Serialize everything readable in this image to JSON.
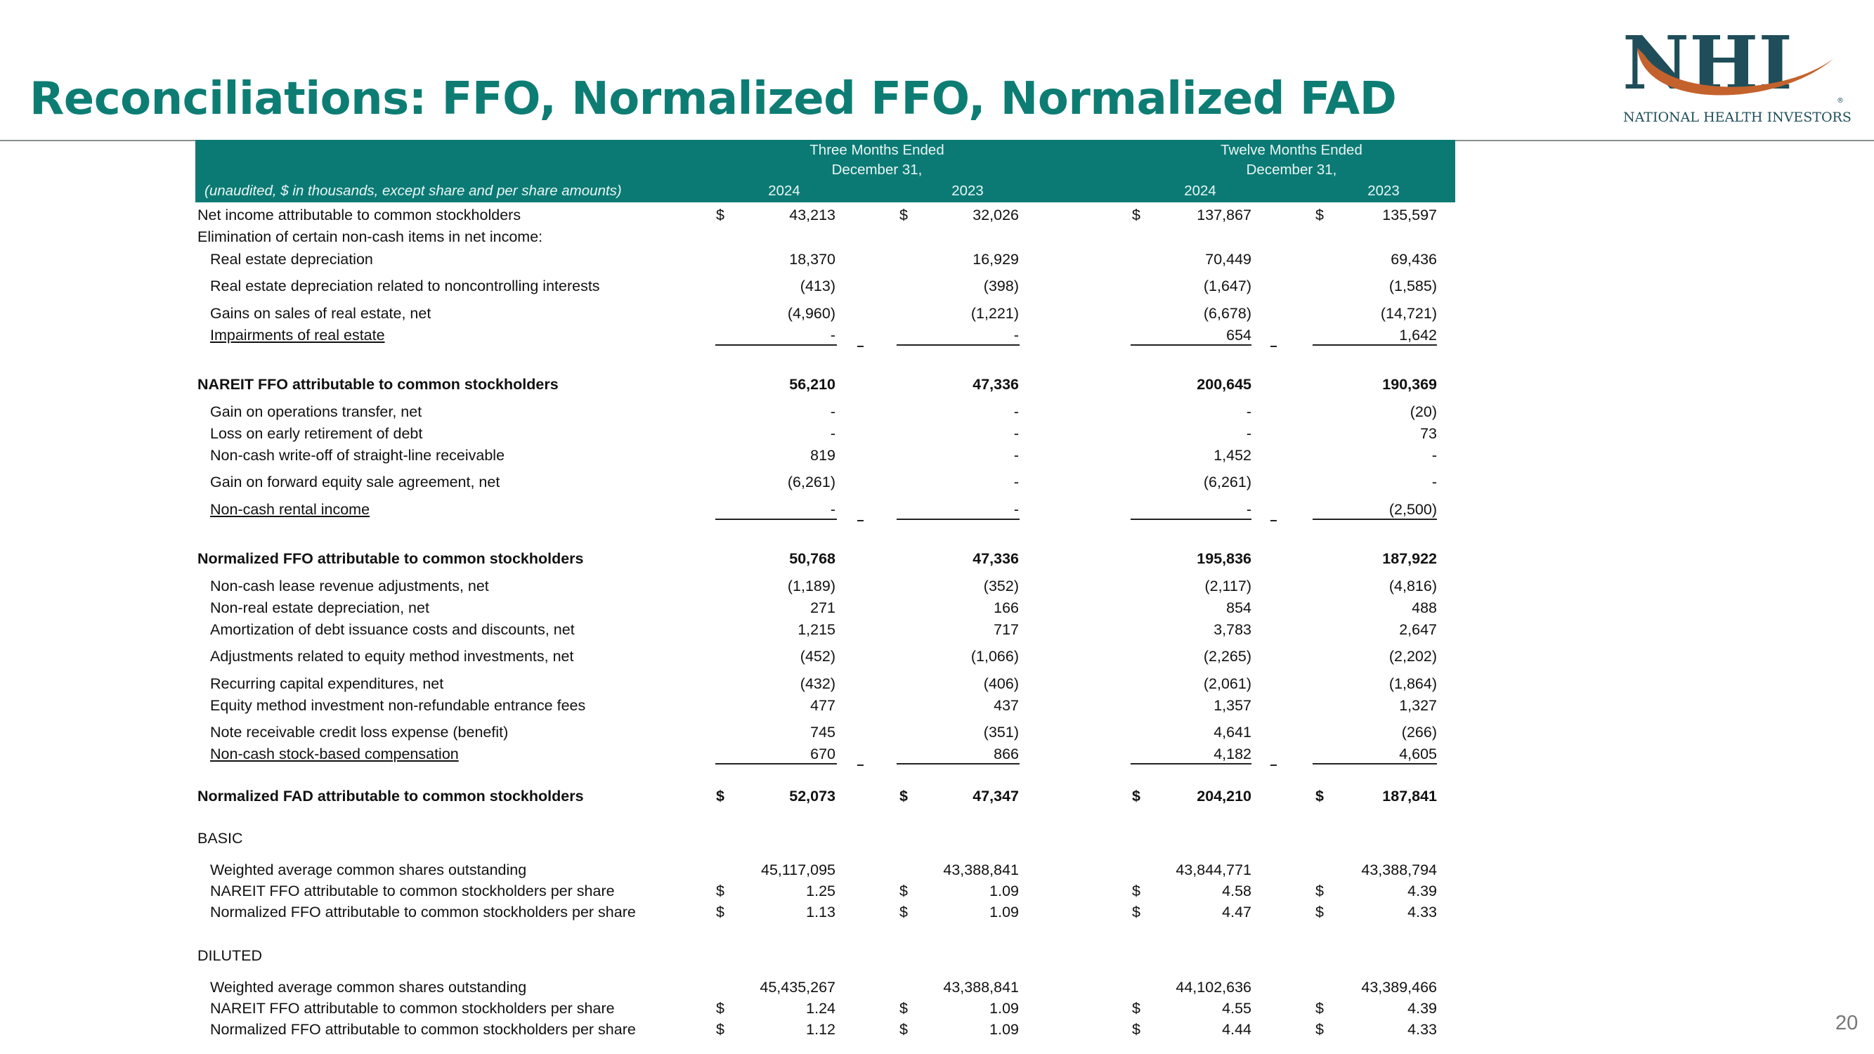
{
  "title": "Reconciliations:  FFO, Normalized FFO, Normalized FAD",
  "page_number": "20",
  "logo": {
    "name": "NHI",
    "subtitle": "NATIONAL HEALTH INVESTORS",
    "registered": "®"
  },
  "colors": {
    "teal": "#0d7d74",
    "band": "#0b7a74",
    "swoosh": "#c4622d"
  },
  "header": {
    "three_months": "Three Months Ended",
    "twelve_months": "Twelve Months Ended",
    "december": "December 31,",
    "unaudited": "(unaudited, $ in thousands, except share and per share amounts)",
    "years": [
      "2024",
      "2023",
      "2024",
      "2023"
    ]
  },
  "rows": [
    {
      "label": "Net income attributable to common stockholders",
      "indent": 0,
      "dollar": true,
      "values": [
        "43,213",
        "32,026",
        "137,867",
        "135,597"
      ]
    },
    {
      "label": "Elimination of certain non-cash items in net income:",
      "indent": 0,
      "values": [
        "",
        "",
        "",
        ""
      ]
    },
    {
      "label": "Real estate depreciation",
      "indent": 1,
      "values": [
        "18,370",
        "16,929",
        "70,449",
        "69,436"
      ]
    },
    {
      "label": "Real estate depreciation related to noncontrolling interests",
      "indent": 1,
      "values": [
        "(413)",
        "(398)",
        "(1,647)",
        "(1,585)"
      ]
    },
    {
      "label": "Gains on sales of real estate, net",
      "indent": 1,
      "values": [
        "(4,960)",
        "(1,221)",
        "(6,678)",
        "(14,721)"
      ]
    },
    {
      "label": "Impairments of real estate",
      "indent": 1,
      "underline": true,
      "values": [
        "-",
        "-",
        "654",
        "1,642"
      ]
    },
    {
      "label": "NAREIT FFO attributable to common stockholders",
      "indent": 0,
      "bold": true,
      "values": [
        "56,210",
        "47,336",
        "200,645",
        "190,369"
      ]
    },
    {
      "label": "Gain on operations transfer, net",
      "indent": 1,
      "values": [
        "-",
        "-",
        "-",
        "(20)"
      ]
    },
    {
      "label": "Loss on early retirement  of debt",
      "indent": 1,
      "values": [
        "-",
        "-",
        "-",
        "73"
      ]
    },
    {
      "label": "Non-cash write-off of straight-line receivable",
      "indent": 1,
      "values": [
        "819",
        "-",
        "1,452",
        "-"
      ]
    },
    {
      "label": "Gain on forward equity sale agreement, net",
      "indent": 1,
      "values": [
        "(6,261)",
        "-",
        "(6,261)",
        "-"
      ]
    },
    {
      "label": "Non-cash rental income",
      "indent": 1,
      "underline": true,
      "values": [
        "-",
        "-",
        "-",
        "(2,500)"
      ]
    },
    {
      "label": "Normalized FFO attributable to common stockholders",
      "indent": 0,
      "bold": true,
      "values": [
        "50,768",
        "47,336",
        "195,836",
        "187,922"
      ]
    },
    {
      "label": "Non-cash lease revenue adjustments, net",
      "indent": 1,
      "values": [
        "(1,189)",
        "(352)",
        "(2,117)",
        "(4,816)"
      ]
    },
    {
      "label": "Non-real estate depreciation, net",
      "indent": 1,
      "values": [
        "271",
        "166",
        "854",
        "488"
      ]
    },
    {
      "label": "Amortization of debt issuance costs and discounts, net",
      "indent": 1,
      "values": [
        "1,215",
        "717",
        "3,783",
        "2,647"
      ]
    },
    {
      "label": "Adjustments related to equity method investments, net",
      "indent": 1,
      "values": [
        "(452)",
        "(1,066)",
        "(2,265)",
        "(2,202)"
      ]
    },
    {
      "label": "Recurring capital expenditures, net",
      "indent": 1,
      "values": [
        "(432)",
        "(406)",
        "(2,061)",
        "(1,864)"
      ]
    },
    {
      "label": "Equity method investment non-refundable entrance fees",
      "indent": 1,
      "values": [
        "477",
        "437",
        "1,357",
        "1,327"
      ]
    },
    {
      "label": "Note receivable credit loss expense (benefit)",
      "indent": 1,
      "values": [
        "745",
        "(351)",
        "4,641",
        "(266)"
      ]
    },
    {
      "label": "Non-cash stock-based compensation",
      "indent": 1,
      "underline": true,
      "values": [
        "670",
        "866",
        "4,182",
        "4,605"
      ]
    },
    {
      "label": "Normalized FAD attributable to common stockholders",
      "indent": 0,
      "bold": true,
      "dollar": true,
      "values": [
        "52,073",
        "47,347",
        "204,210",
        "187,841"
      ]
    },
    {
      "label": "BASIC",
      "indent": 0,
      "values": [
        "",
        "",
        "",
        ""
      ]
    },
    {
      "label": "Weighted average common shares outstanding",
      "indent": 1,
      "values": [
        "45,117,095",
        "43,388,841",
        "43,844,771",
        "43,388,794"
      ]
    },
    {
      "label": "NAREIT FFO attributable to common stockholders per share",
      "indent": 1,
      "dollar": true,
      "values": [
        "1.25",
        "1.09",
        "4.58",
        "4.39"
      ]
    },
    {
      "label": "Normalized FFO attributable to common stockholders per share",
      "indent": 1,
      "dollar": true,
      "values": [
        "1.13",
        "1.09",
        "4.47",
        "4.33"
      ]
    },
    {
      "label": "DILUTED",
      "indent": 0,
      "values": [
        "",
        "",
        "",
        ""
      ]
    },
    {
      "label": "Weighted average common shares outstanding",
      "indent": 1,
      "values": [
        "45,435,267",
        "43,388,841",
        "44,102,636",
        "43,389,466"
      ]
    },
    {
      "label": "NAREIT FFO attributable to common stockholders per share",
      "indent": 1,
      "dollar": true,
      "values": [
        "1.24",
        "1.09",
        "4.55",
        "4.39"
      ]
    },
    {
      "label": "Normalized FFO attributable to common stockholders per share",
      "indent": 1,
      "dollar": true,
      "values": [
        "1.12",
        "1.09",
        "4.44",
        "4.33"
      ]
    }
  ]
}
